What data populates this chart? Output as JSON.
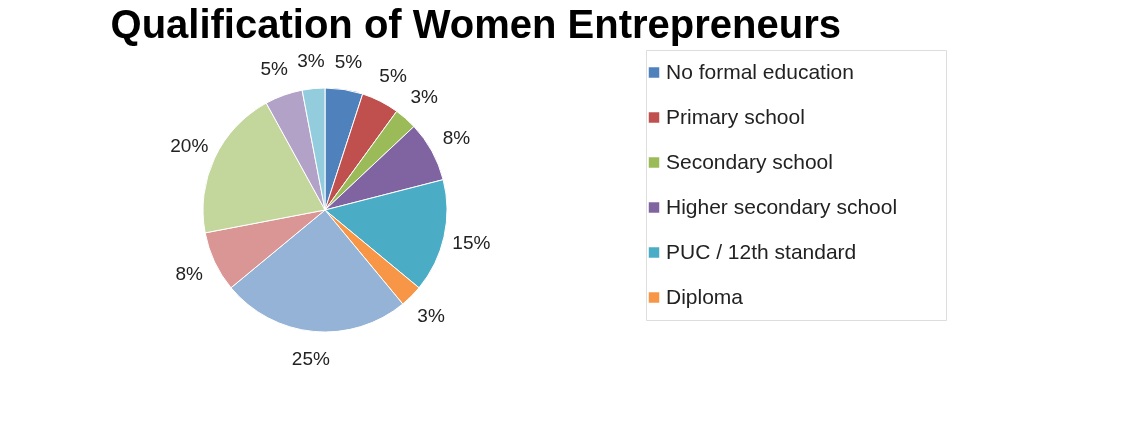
{
  "chart_data": {
    "type": "pie",
    "title": "Qualification of Women Entrepreneurs",
    "categories": [
      "No formal education",
      "Primary school",
      "Secondary school",
      "Higher secondary  school",
      "PUC / 12th standard",
      "Diploma",
      null,
      null,
      null,
      null,
      null
    ],
    "values": [
      5,
      5,
      3,
      8,
      15,
      3,
      25,
      8,
      20,
      5,
      3
    ],
    "value_labels": [
      "5%",
      "5%",
      "3%",
      "8%",
      "15%",
      "3%",
      "25%",
      "8%",
      "20%",
      "5%",
      "3%"
    ],
    "colors": [
      "#4f81bd",
      "#c0504d",
      "#9bbb59",
      "#8064a2",
      "#4bacc6",
      "#f79646",
      "#95b3d7",
      "#d99694",
      "#c3d69b",
      "#b3a2c7",
      "#93cddd"
    ],
    "legend": "right"
  }
}
